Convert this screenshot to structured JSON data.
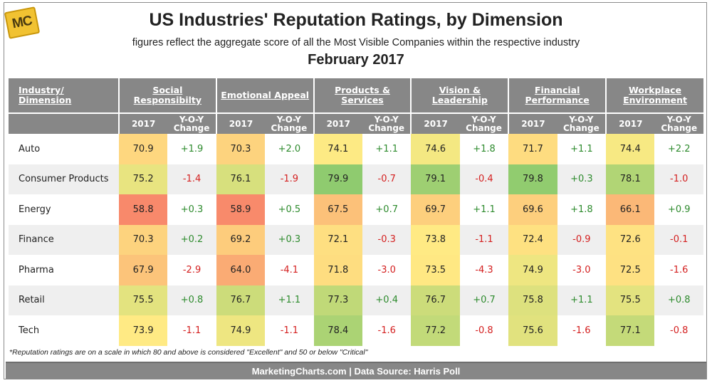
{
  "header": {
    "logo": "MC",
    "title": "US Industries' Reputation Ratings, by Dimension",
    "subtitle": "figures reflect the aggregate score of all the Most Visible Companies within the respective industry",
    "date": "February 2017"
  },
  "chart_data": {
    "type": "table",
    "title": "US Industries' Reputation Ratings, by Dimension",
    "row_header": "Industry/ Dimension",
    "dimensions": [
      "Social Responsibilty",
      "Emotional Appeal",
      "Products & Services",
      "Vision & Leadership",
      "Financial Performance",
      "Workplace Environment"
    ],
    "subheaders": [
      "2017",
      "Y-O-Y Change"
    ],
    "rows": [
      {
        "industry": "Auto",
        "scores": [
          "70.9",
          "70.3",
          "74.1",
          "74.6",
          "71.7",
          "74.4"
        ],
        "changes": [
          "+1.9",
          "+2.0",
          "+1.1",
          "+1.8",
          "+1.1",
          "+2.2"
        ]
      },
      {
        "industry": "Consumer Products",
        "scores": [
          "75.2",
          "76.1",
          "79.9",
          "79.1",
          "79.8",
          "78.1"
        ],
        "changes": [
          "-1.4",
          "-1.9",
          "-0.7",
          "-0.4",
          "+0.3",
          "-1.0"
        ]
      },
      {
        "industry": "Energy",
        "scores": [
          "58.8",
          "58.9",
          "67.5",
          "69.7",
          "69.6",
          "66.1"
        ],
        "changes": [
          "+0.3",
          "+0.5",
          "+0.7",
          "+1.1",
          "+1.8",
          "+0.9"
        ]
      },
      {
        "industry": "Finance",
        "scores": [
          "70.3",
          "69.2",
          "72.1",
          "73.8",
          "72.4",
          "72.6"
        ],
        "changes": [
          "+0.2",
          "+0.3",
          "-0.3",
          "-1.1",
          "-0.9",
          "-0.1"
        ]
      },
      {
        "industry": "Pharma",
        "scores": [
          "67.9",
          "64.0",
          "71.8",
          "73.5",
          "74.9",
          "72.5"
        ],
        "changes": [
          "-2.9",
          "-4.1",
          "-3.0",
          "-4.3",
          "-3.0",
          "-1.6"
        ]
      },
      {
        "industry": "Retail",
        "scores": [
          "75.5",
          "76.7",
          "77.3",
          "76.7",
          "75.8",
          "75.5"
        ],
        "changes": [
          "+0.8",
          "+1.1",
          "+0.4",
          "+0.7",
          "+1.1",
          "+0.8"
        ]
      },
      {
        "industry": "Tech",
        "scores": [
          "73.9",
          "74.9",
          "78.4",
          "77.2",
          "75.6",
          "77.1"
        ],
        "changes": [
          "-1.1",
          "-1.1",
          "-1.6",
          "-0.8",
          "-1.6",
          "-0.8"
        ]
      }
    ],
    "color_scale": {
      "low": "#f8896b",
      "mid": "#ffeb84",
      "high": "#8fcb6f"
    }
  },
  "footnote": "*Reputation ratings are on a scale in which 80 and above is considered \"Excellent\" and 50 or below \"Critical\"",
  "footer": "MarketingCharts.com | Data Source: Harris Poll"
}
